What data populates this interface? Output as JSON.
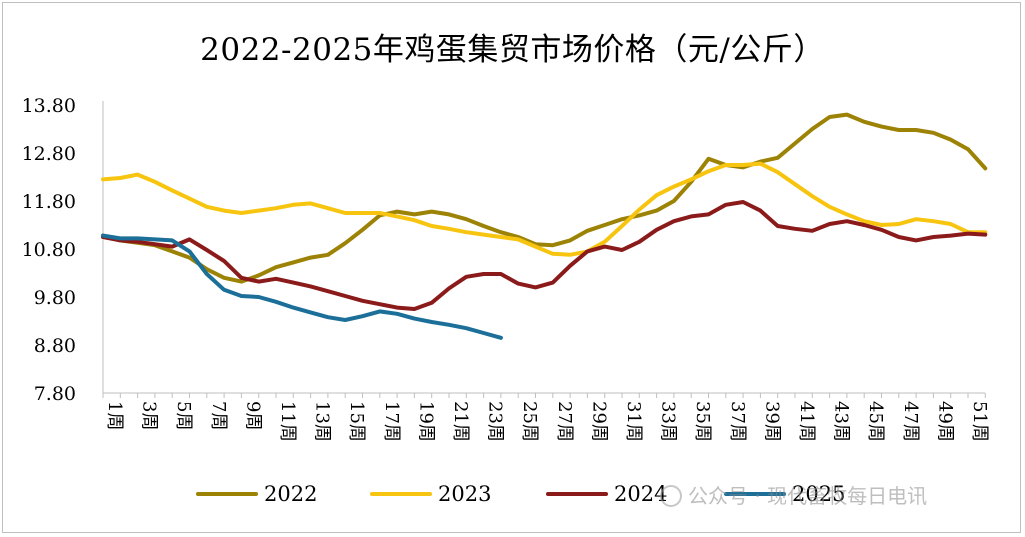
{
  "chart_data": {
    "type": "line",
    "title": "2022-2025年鸡蛋集贸市场价格（元/公斤）",
    "xlabel": "",
    "ylabel": "",
    "y_ticks": [
      "13.80",
      "12.80",
      "11.80",
      "10.80",
      "9.80",
      "8.80",
      "7.80"
    ],
    "ylim": [
      7.8,
      13.8
    ],
    "x_tick_labels": [
      "1周",
      "3周",
      "5周",
      "7周",
      "9周",
      "11周",
      "13周",
      "15周",
      "17周",
      "19周",
      "21周",
      "23周",
      "25周",
      "27周",
      "29周",
      "31周",
      "33周",
      "35周",
      "37周",
      "39周",
      "41周",
      "43周",
      "45周",
      "47周",
      "49周",
      "51周"
    ],
    "x_weeks": [
      1,
      2,
      3,
      4,
      5,
      6,
      7,
      8,
      9,
      10,
      11,
      12,
      13,
      14,
      15,
      16,
      17,
      18,
      19,
      20,
      21,
      22,
      23,
      24,
      25,
      26,
      27,
      28,
      29,
      30,
      31,
      32,
      33,
      34,
      35,
      36,
      37,
      38,
      39,
      40,
      41,
      42,
      43,
      44,
      45,
      46,
      47,
      48,
      49,
      50,
      51,
      52
    ],
    "grid": false,
    "legend": "bottom",
    "series": [
      {
        "name": "2022",
        "color": "#9c8205",
        "values": [
          11.08,
          10.98,
          10.93,
          10.88,
          10.75,
          10.62,
          10.38,
          10.2,
          10.12,
          10.25,
          10.42,
          10.52,
          10.62,
          10.68,
          10.92,
          11.2,
          11.5,
          11.58,
          11.52,
          11.58,
          11.52,
          11.42,
          11.28,
          11.15,
          11.05,
          10.9,
          10.88,
          10.98,
          11.18,
          11.3,
          11.42,
          11.5,
          11.6,
          11.8,
          12.2,
          12.68,
          12.55,
          12.5,
          12.62,
          12.7,
          13.0,
          13.3,
          13.55,
          13.6,
          13.45,
          13.35,
          13.28,
          13.28,
          13.22,
          13.08,
          12.88,
          12.48
        ]
      },
      {
        "name": "2023",
        "color": "#f7c40f",
        "values": [
          12.25,
          12.28,
          12.35,
          12.2,
          12.02,
          11.85,
          11.68,
          11.6,
          11.55,
          11.6,
          11.65,
          11.72,
          11.75,
          11.65,
          11.55,
          11.55,
          11.55,
          11.48,
          11.4,
          11.28,
          11.22,
          11.15,
          11.1,
          11.05,
          11.0,
          10.85,
          10.7,
          10.68,
          10.75,
          10.95,
          11.28,
          11.62,
          11.92,
          12.1,
          12.25,
          12.42,
          12.55,
          12.55,
          12.58,
          12.4,
          12.15,
          11.9,
          11.68,
          11.52,
          11.38,
          11.3,
          11.32,
          11.42,
          11.38,
          11.32,
          11.15,
          11.15
        ]
      },
      {
        "name": "2024",
        "color": "#8b1a1a",
        "values": [
          11.05,
          10.98,
          10.95,
          10.9,
          10.85,
          11.0,
          10.78,
          10.55,
          10.2,
          10.12,
          10.18,
          10.1,
          10.02,
          9.92,
          9.82,
          9.72,
          9.65,
          9.58,
          9.55,
          9.68,
          9.98,
          10.22,
          10.28,
          10.28,
          10.08,
          10.0,
          10.1,
          10.45,
          10.75,
          10.85,
          10.78,
          10.95,
          11.2,
          11.38,
          11.48,
          11.52,
          11.72,
          11.78,
          11.6,
          11.28,
          11.22,
          11.18,
          11.32,
          11.38,
          11.3,
          11.2,
          11.05,
          10.98,
          11.05,
          11.08,
          11.12,
          11.1
        ]
      },
      {
        "name": "2025",
        "color": "#1b6f98",
        "values": [
          11.08,
          11.02,
          11.02,
          11.0,
          10.98,
          10.75,
          10.28,
          9.95,
          9.82,
          9.8,
          9.7,
          9.58,
          9.48,
          9.38,
          9.32,
          9.4,
          9.5,
          9.45,
          9.35,
          9.28,
          9.22,
          9.15,
          9.05,
          8.95
        ]
      }
    ]
  },
  "watermark": {
    "text": "公众号 · 现代畜牧每日电讯"
  }
}
